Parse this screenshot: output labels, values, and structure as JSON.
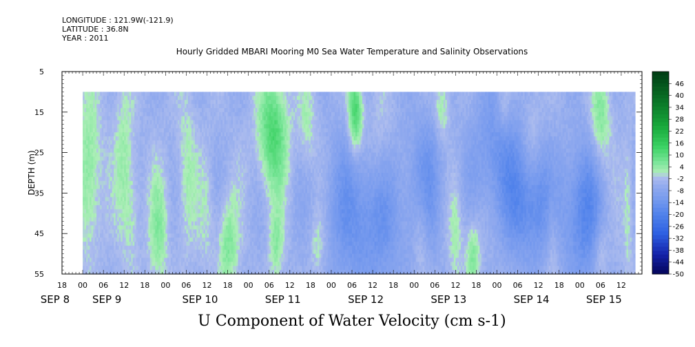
{
  "header": {
    "longitude": "LONGITUDE : 121.9W(-121.9)",
    "latitude": "LATITUDE : 36.8N",
    "year": "YEAR : 2011"
  },
  "chart_data": {
    "type": "heatmap",
    "title": "Hourly Gridded MBARI Mooring M0 Sea Water Temperature and Salinity Observations",
    "xlabel": "U Component of Water Velocity (cm s-1)",
    "ylabel": "DEPTH (m)",
    "x_axis": {
      "units": "hours",
      "range_hours": [
        -6,
        162
      ],
      "data_start_hours": 0,
      "data_end_hours": 160,
      "hour_tick_labels": [
        {
          "h": -6,
          "label": "18"
        },
        {
          "h": 0,
          "label": "00"
        },
        {
          "h": 6,
          "label": "06"
        },
        {
          "h": 12,
          "label": "12"
        },
        {
          "h": 18,
          "label": "18"
        },
        {
          "h": 24,
          "label": "00"
        },
        {
          "h": 30,
          "label": "06"
        },
        {
          "h": 36,
          "label": "12"
        },
        {
          "h": 42,
          "label": "18"
        },
        {
          "h": 48,
          "label": "00"
        },
        {
          "h": 54,
          "label": "06"
        },
        {
          "h": 60,
          "label": "12"
        },
        {
          "h": 66,
          "label": "18"
        },
        {
          "h": 72,
          "label": "00"
        },
        {
          "h": 78,
          "label": "06"
        },
        {
          "h": 84,
          "label": "12"
        },
        {
          "h": 90,
          "label": "18"
        },
        {
          "h": 96,
          "label": "00"
        },
        {
          "h": 102,
          "label": "06"
        },
        {
          "h": 108,
          "label": "12"
        },
        {
          "h": 114,
          "label": "18"
        },
        {
          "h": 120,
          "label": "00"
        },
        {
          "h": 126,
          "label": "06"
        },
        {
          "h": 132,
          "label": "12"
        },
        {
          "h": 138,
          "label": "18"
        },
        {
          "h": 144,
          "label": "00"
        },
        {
          "h": 150,
          "label": "06"
        },
        {
          "h": 156,
          "label": "12"
        }
      ],
      "date_labels": [
        {
          "h": -8,
          "label": "SEP  8"
        },
        {
          "h": 7,
          "label": "SEP  9"
        },
        {
          "h": 34,
          "label": "SEP 10"
        },
        {
          "h": 58,
          "label": "SEP 11"
        },
        {
          "h": 82,
          "label": "SEP 12"
        },
        {
          "h": 106,
          "label": "SEP 13"
        },
        {
          "h": 130,
          "label": "SEP 14"
        },
        {
          "h": 151,
          "label": "SEP 15"
        }
      ]
    },
    "y_axis": {
      "range": [
        5,
        55
      ],
      "inverted": true,
      "ticks": [
        5,
        15,
        25,
        35,
        45,
        55
      ],
      "data_top_depth": 10
    },
    "colorbar": {
      "labels": [
        "46",
        "40",
        "34",
        "28",
        "22",
        "16",
        "10",
        "4",
        "-2",
        "-8",
        "-14",
        "-20",
        "-26",
        "-32",
        "-38",
        "-44",
        "-50"
      ],
      "min": -50,
      "max": 52
    },
    "features": [
      {
        "t": 2,
        "d": 30,
        "v": 10,
        "sw": 2.5,
        "sd": 14
      },
      {
        "t": 12,
        "d": 22,
        "v": 6,
        "sw": 2,
        "sd": 12
      },
      {
        "t": 14,
        "d": 40,
        "v": 6,
        "sw": 2,
        "sd": 10
      },
      {
        "t": 22,
        "d": 45,
        "v": 8,
        "sw": 2,
        "sd": 10
      },
      {
        "t": 30,
        "d": 30,
        "v": 6,
        "sw": 2,
        "sd": 14
      },
      {
        "t": 36,
        "d": 40,
        "v": 4,
        "sw": 1.5,
        "sd": 10
      },
      {
        "t": 42,
        "d": 48,
        "v": 10,
        "sw": 2,
        "sd": 8
      },
      {
        "t": 55,
        "d": 20,
        "v": 16,
        "sw": 3,
        "sd": 10
      },
      {
        "t": 56,
        "d": 48,
        "v": 8,
        "sw": 1.5,
        "sd": 6
      },
      {
        "t": 65,
        "d": 18,
        "v": 6,
        "sw": 2,
        "sd": 8
      },
      {
        "t": 68,
        "d": 48,
        "v": 6,
        "sw": 1.5,
        "sd": 6
      },
      {
        "t": 79,
        "d": 15,
        "v": 18,
        "sw": 1.5,
        "sd": 7
      },
      {
        "t": 86,
        "d": 24,
        "v": 6,
        "sw": 3,
        "sd": 10
      },
      {
        "t": 98,
        "d": 45,
        "v": 6,
        "sw": 1.5,
        "sd": 8
      },
      {
        "t": 104,
        "d": 14,
        "v": 8,
        "sw": 1.5,
        "sd": 6
      },
      {
        "t": 108,
        "d": 45,
        "v": 6,
        "sw": 1.5,
        "sd": 10
      },
      {
        "t": 113,
        "d": 50,
        "v": 10,
        "sw": 1.5,
        "sd": 6
      },
      {
        "t": 122,
        "d": 14,
        "v": 6,
        "sw": 1.5,
        "sd": 5
      },
      {
        "t": 130,
        "d": 20,
        "v": 4,
        "sw": 2,
        "sd": 10
      },
      {
        "t": 136,
        "d": 45,
        "v": 6,
        "sw": 1.5,
        "sd": 10
      },
      {
        "t": 150,
        "d": 17,
        "v": 10,
        "sw": 2,
        "sd": 8
      },
      {
        "t": 150,
        "d": 50,
        "v": 6,
        "sw": 1.5,
        "sd": 6
      },
      {
        "t": 158,
        "d": 40,
        "v": 6,
        "sw": 1,
        "sd": 12
      },
      {
        "t": 82,
        "d": 40,
        "v": -12,
        "sw": 8,
        "sd": 14
      },
      {
        "t": 120,
        "d": 25,
        "v": -10,
        "sw": 5,
        "sd": 12
      },
      {
        "t": 130,
        "d": 38,
        "v": -14,
        "sw": 5,
        "sd": 10
      },
      {
        "t": 145,
        "d": 40,
        "v": -14,
        "sw": 4,
        "sd": 12
      },
      {
        "t": 100,
        "d": 32,
        "v": -8,
        "sw": 4,
        "sd": 12
      }
    ]
  }
}
